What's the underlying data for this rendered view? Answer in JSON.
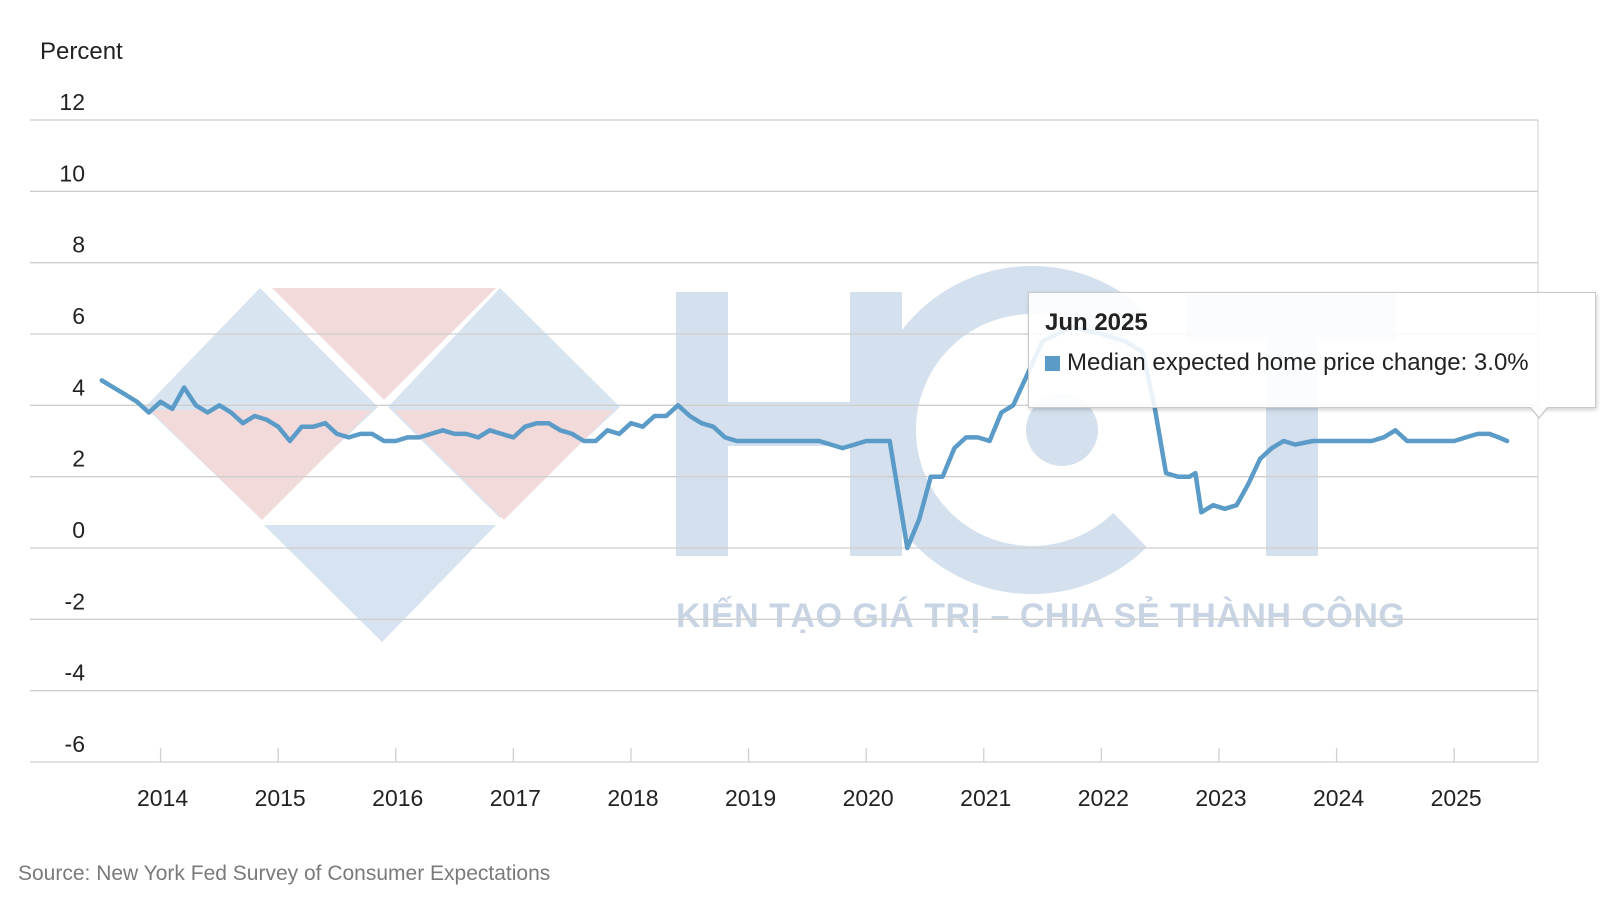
{
  "chart_data": {
    "type": "line",
    "ylabel": "Percent",
    "ylim": [
      -6,
      12
    ],
    "yticks": [
      12,
      10,
      8,
      6,
      4,
      2,
      0,
      -2,
      -4,
      -6
    ],
    "xlim": [
      2013.4,
      2025.9
    ],
    "xticks": [
      "2014",
      "2015",
      "2016",
      "2017",
      "2018",
      "2019",
      "2020",
      "2021",
      "2022",
      "2023",
      "2024",
      "2025"
    ],
    "grid": true,
    "legend": "none",
    "color": "#5b9bc8",
    "series": [
      {
        "x": [
          2013.5,
          2013.6,
          2013.7,
          2013.8,
          2013.9,
          2014.0,
          2014.1,
          2014.2,
          2014.3,
          2014.4,
          2014.5,
          2014.6,
          2014.7,
          2014.8,
          2014.9,
          2015.0,
          2015.1,
          2015.2,
          2015.3,
          2015.4,
          2015.5,
          2015.6,
          2015.7,
          2015.8,
          2015.9,
          2016.0,
          2016.1,
          2016.2,
          2016.3,
          2016.4,
          2016.5,
          2016.6,
          2016.7,
          2016.8,
          2016.9,
          2017.0,
          2017.1,
          2017.2,
          2017.3,
          2017.4,
          2017.5,
          2017.6,
          2017.7,
          2017.8,
          2017.9,
          2018.0,
          2018.1,
          2018.2,
          2018.3,
          2018.4,
          2018.5,
          2018.6,
          2018.7,
          2018.8,
          2018.9,
          2019.0,
          2019.2,
          2019.4,
          2019.6,
          2019.8,
          2019.9,
          2020.0,
          2020.1,
          2020.2,
          2020.25,
          2020.35,
          2020.45,
          2020.55,
          2020.65,
          2020.75,
          2020.85,
          2020.95,
          2021.05,
          2021.15,
          2021.25,
          2021.5,
          2021.75,
          2022.0,
          2022.2,
          2022.35,
          2022.45,
          2022.55,
          2022.65,
          2022.75,
          2022.8,
          2022.85,
          2022.95,
          2023.05,
          2023.15,
          2023.25,
          2023.35,
          2023.45,
          2023.55,
          2023.65,
          2023.8,
          2024.0,
          2024.1,
          2024.2,
          2024.3,
          2024.4,
          2024.5,
          2024.6,
          2024.7,
          2024.8,
          2024.9,
          2025.0,
          2025.1,
          2025.2,
          2025.3,
          2025.38,
          2025.45
        ],
        "values": [
          4.7,
          4.5,
          4.3,
          4.1,
          3.8,
          4.1,
          3.9,
          4.5,
          4.0,
          3.8,
          4.0,
          3.8,
          3.5,
          3.7,
          3.6,
          3.4,
          3.0,
          3.4,
          3.4,
          3.5,
          3.2,
          3.1,
          3.2,
          3.2,
          3.0,
          3.0,
          3.1,
          3.1,
          3.2,
          3.3,
          3.2,
          3.2,
          3.1,
          3.3,
          3.2,
          3.1,
          3.4,
          3.5,
          3.5,
          3.3,
          3.2,
          3.0,
          3.0,
          3.3,
          3.2,
          3.5,
          3.4,
          3.7,
          3.7,
          4.0,
          3.7,
          3.5,
          3.4,
          3.1,
          3.0,
          3.0,
          3.0,
          3.0,
          3.0,
          2.8,
          2.9,
          3.0,
          3.0,
          3.0,
          2.0,
          0.0,
          0.8,
          2.0,
          2.0,
          2.8,
          3.1,
          3.1,
          3.0,
          3.8,
          4.0,
          5.8,
          6.2,
          6.0,
          5.8,
          5.5,
          4.0,
          2.1,
          2.0,
          2.0,
          2.1,
          1.0,
          1.2,
          1.1,
          1.2,
          1.8,
          2.5,
          2.8,
          3.0,
          2.9,
          3.0,
          3.0,
          3.0,
          3.0,
          3.0,
          3.1,
          3.3,
          3.0,
          3.0,
          3.0,
          3.0,
          3.0,
          3.1,
          3.2,
          3.2,
          3.1,
          3.0
        ]
      }
    ],
    "tooltip": {
      "title": "Jun 2025",
      "label": "Median expected home price change: 3.0%"
    },
    "source": "Source: New York Fed Survey of Consumer Expectations"
  },
  "watermark": {
    "letters": "HCT",
    "tagline": "KIẾN TẠO GIÁ TRỊ – CHIA SẺ THÀNH CÔNG"
  }
}
